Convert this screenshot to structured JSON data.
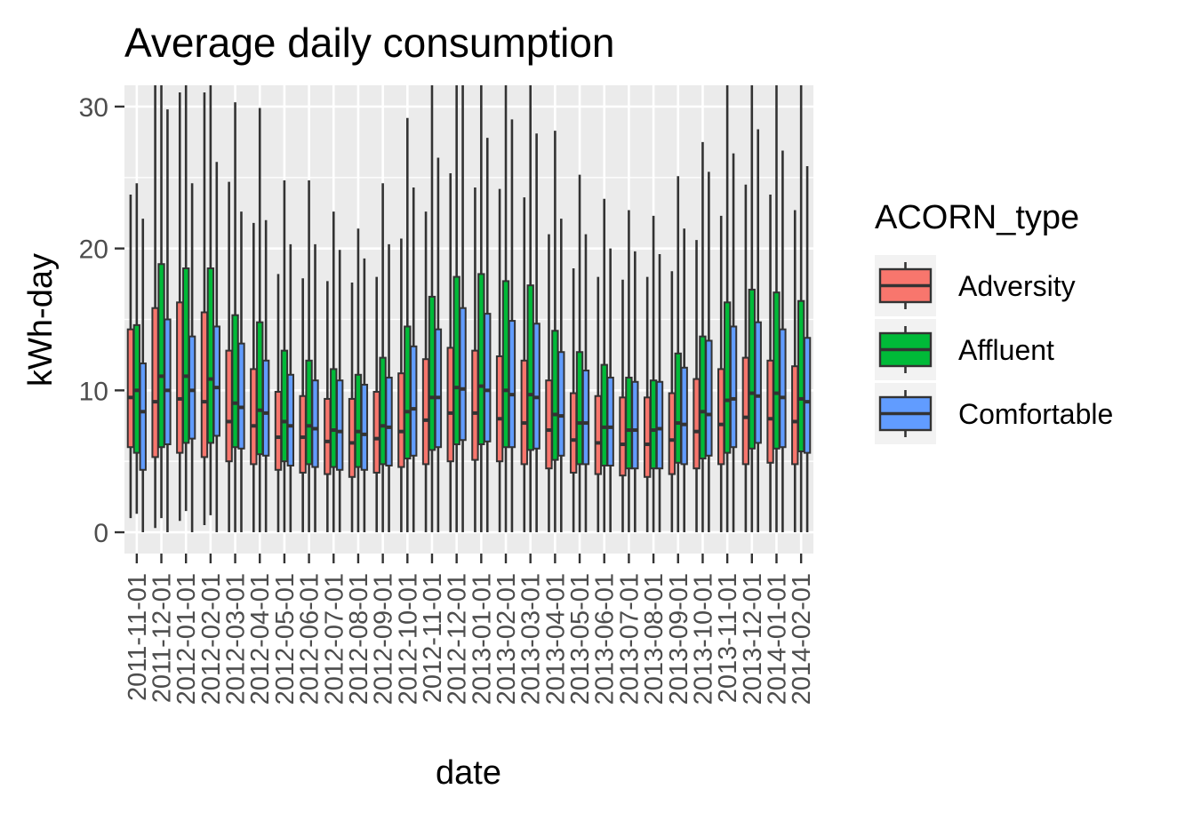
{
  "chart_data": {
    "type": "boxplot",
    "title": "Average daily consumption",
    "xlabel": "date",
    "ylabel": "kWh-day",
    "ylim": [
      -1.5,
      31.5
    ],
    "yticks": [
      0,
      10,
      20,
      30
    ],
    "grid": true,
    "legend": {
      "title": "ACORN_type",
      "position": "right",
      "entries": [
        "Adversity",
        "Affluent",
        "Comfortable"
      ]
    },
    "colors": {
      "Adversity": "#F8766D",
      "Affluent": "#00BA38",
      "Comfortable": "#619CFF",
      "panel": "#EBEBEB",
      "grid": "#FFFFFF",
      "stroke": "#333333"
    },
    "categories": [
      "2011-11-01",
      "2011-12-01",
      "2012-01-01",
      "2012-02-01",
      "2012-03-01",
      "2012-04-01",
      "2012-05-01",
      "2012-06-01",
      "2012-07-01",
      "2012-08-01",
      "2012-09-01",
      "2012-10-01",
      "2012-11-01",
      "2012-12-01",
      "2013-01-01",
      "2013-02-01",
      "2013-03-01",
      "2013-04-01",
      "2013-05-01",
      "2013-06-01",
      "2013-07-01",
      "2013-08-01",
      "2013-09-01",
      "2013-10-01",
      "2013-11-01",
      "2013-12-01",
      "2014-01-01",
      "2014-02-01"
    ],
    "series": [
      {
        "name": "Adversity",
        "boxes": [
          [
            1.0,
            6.0,
            9.5,
            14.3,
            23.8
          ],
          [
            0.3,
            5.3,
            9.2,
            15.8,
            31.5
          ],
          [
            0.8,
            5.6,
            9.4,
            16.2,
            31.0
          ],
          [
            0.5,
            5.3,
            9.2,
            15.5,
            31.0
          ],
          [
            0.0,
            5.0,
            7.8,
            12.8,
            24.7
          ],
          [
            0.0,
            4.8,
            7.5,
            11.5,
            21.8
          ],
          [
            0.0,
            4.4,
            6.7,
            9.9,
            18.2
          ],
          [
            0.0,
            4.2,
            6.7,
            9.6,
            17.9
          ],
          [
            0.0,
            4.1,
            6.4,
            9.4,
            17.7
          ],
          [
            0.0,
            3.9,
            6.3,
            9.4,
            17.6
          ],
          [
            0.0,
            4.2,
            6.6,
            9.9,
            18.0
          ],
          [
            0.0,
            4.6,
            7.1,
            11.2,
            20.7
          ],
          [
            0.0,
            4.8,
            7.9,
            12.2,
            22.6
          ],
          [
            0.0,
            5.0,
            8.4,
            13.0,
            25.3
          ],
          [
            0.0,
            5.1,
            8.4,
            12.8,
            24.3
          ],
          [
            0.0,
            5.0,
            8.0,
            12.4,
            24.2
          ],
          [
            0.0,
            4.8,
            7.7,
            12.1,
            23.6
          ],
          [
            0.0,
            4.5,
            7.2,
            10.7,
            21.0
          ],
          [
            0.0,
            4.2,
            6.5,
            9.8,
            18.6
          ],
          [
            0.0,
            4.1,
            6.3,
            9.6,
            18.0
          ],
          [
            0.0,
            4.0,
            6.2,
            9.5,
            17.8
          ],
          [
            0.0,
            3.9,
            6.2,
            9.5,
            18.0
          ],
          [
            0.0,
            4.1,
            6.5,
            9.8,
            18.4
          ],
          [
            0.0,
            4.5,
            7.1,
            10.8,
            20.6
          ],
          [
            0.0,
            4.8,
            7.6,
            11.5,
            22.3
          ],
          [
            0.0,
            4.8,
            8.1,
            12.3,
            24.5
          ],
          [
            0.0,
            4.9,
            8.0,
            12.1,
            23.8
          ],
          [
            0.0,
            4.8,
            7.8,
            11.7,
            22.7
          ]
        ]
      },
      {
        "name": "Affluent",
        "boxes": [
          [
            1.3,
            5.6,
            10.0,
            14.6,
            24.6
          ],
          [
            1.0,
            6.0,
            11.0,
            18.9,
            31.5
          ],
          [
            1.5,
            6.3,
            11.0,
            18.6,
            31.5
          ],
          [
            1.2,
            6.3,
            10.8,
            18.6,
            31.5
          ],
          [
            0.0,
            6.0,
            9.1,
            15.3,
            30.3
          ],
          [
            0.0,
            5.5,
            8.6,
            14.8,
            29.9
          ],
          [
            0.0,
            5.0,
            7.8,
            12.8,
            24.8
          ],
          [
            0.0,
            4.8,
            7.5,
            12.1,
            24.8
          ],
          [
            0.0,
            4.6,
            7.2,
            11.5,
            22.6
          ],
          [
            0.0,
            4.6,
            7.1,
            11.1,
            21.4
          ],
          [
            0.0,
            4.8,
            7.5,
            12.3,
            24.6
          ],
          [
            0.0,
            5.2,
            8.5,
            14.5,
            29.2
          ],
          [
            0.0,
            5.8,
            9.5,
            16.6,
            31.5
          ],
          [
            0.0,
            6.2,
            10.2,
            18.0,
            31.5
          ],
          [
            0.0,
            6.2,
            10.3,
            18.2,
            31.5
          ],
          [
            0.0,
            6.0,
            10.0,
            17.7,
            31.5
          ],
          [
            0.0,
            5.8,
            9.7,
            17.4,
            31.5
          ],
          [
            0.0,
            5.1,
            8.3,
            14.2,
            28.3
          ],
          [
            0.0,
            4.8,
            7.7,
            12.7,
            25.2
          ],
          [
            0.0,
            4.7,
            7.4,
            11.8,
            23.5
          ],
          [
            0.0,
            4.5,
            7.2,
            10.9,
            22.7
          ],
          [
            0.0,
            4.5,
            7.2,
            10.7,
            22.3
          ],
          [
            0.0,
            4.9,
            7.7,
            12.6,
            25.1
          ],
          [
            0.0,
            5.2,
            8.5,
            13.8,
            27.5
          ],
          [
            0.0,
            5.6,
            9.3,
            16.2,
            31.5
          ],
          [
            0.0,
            5.9,
            9.8,
            17.1,
            31.5
          ],
          [
            0.0,
            5.9,
            9.8,
            16.9,
            31.5
          ],
          [
            0.0,
            5.7,
            9.4,
            16.3,
            31.5
          ]
        ]
      },
      {
        "name": "Comfortable",
        "boxes": [
          [
            0.0,
            4.4,
            8.5,
            11.9,
            22.1
          ],
          [
            0.0,
            6.2,
            10.0,
            15.0,
            29.8
          ],
          [
            0.0,
            6.6,
            10.0,
            13.8,
            24.6
          ],
          [
            0.0,
            6.8,
            10.2,
            14.5,
            26.1
          ],
          [
            0.0,
            5.9,
            8.8,
            13.3,
            22.6
          ],
          [
            0.0,
            5.4,
            8.4,
            12.1,
            22.0
          ],
          [
            0.0,
            4.7,
            7.5,
            11.1,
            20.3
          ],
          [
            0.0,
            4.6,
            7.3,
            10.7,
            20.3
          ],
          [
            0.0,
            4.4,
            7.1,
            10.7,
            19.9
          ],
          [
            0.0,
            4.4,
            6.9,
            10.4,
            19.3
          ],
          [
            0.0,
            4.7,
            7.4,
            10.9,
            20.3
          ],
          [
            0.0,
            5.4,
            8.7,
            13.1,
            24.3
          ],
          [
            0.0,
            6.0,
            9.5,
            14.3,
            26.4
          ],
          [
            0.0,
            6.5,
            10.1,
            15.8,
            31.5
          ],
          [
            0.0,
            6.4,
            10.0,
            15.4,
            27.8
          ],
          [
            0.0,
            6.0,
            9.7,
            14.9,
            29.1
          ],
          [
            0.0,
            5.9,
            9.5,
            14.7,
            28.1
          ],
          [
            0.0,
            5.4,
            8.2,
            12.7,
            22.1
          ],
          [
            0.0,
            4.8,
            7.7,
            11.4,
            21.0
          ],
          [
            0.0,
            4.7,
            7.4,
            10.9,
            20.0
          ],
          [
            0.0,
            4.5,
            7.2,
            10.6,
            19.8
          ],
          [
            0.0,
            4.5,
            7.3,
            10.6,
            19.6
          ],
          [
            0.0,
            4.8,
            7.6,
            11.6,
            21.4
          ],
          [
            0.0,
            5.4,
            8.3,
            13.5,
            25.4
          ],
          [
            0.0,
            6.0,
            9.4,
            14.5,
            26.7
          ],
          [
            0.0,
            6.3,
            9.6,
            14.8,
            28.4
          ],
          [
            0.0,
            6.0,
            9.5,
            14.3,
            26.9
          ],
          [
            0.0,
            5.6,
            9.2,
            13.7,
            25.8
          ]
        ]
      }
    ]
  }
}
